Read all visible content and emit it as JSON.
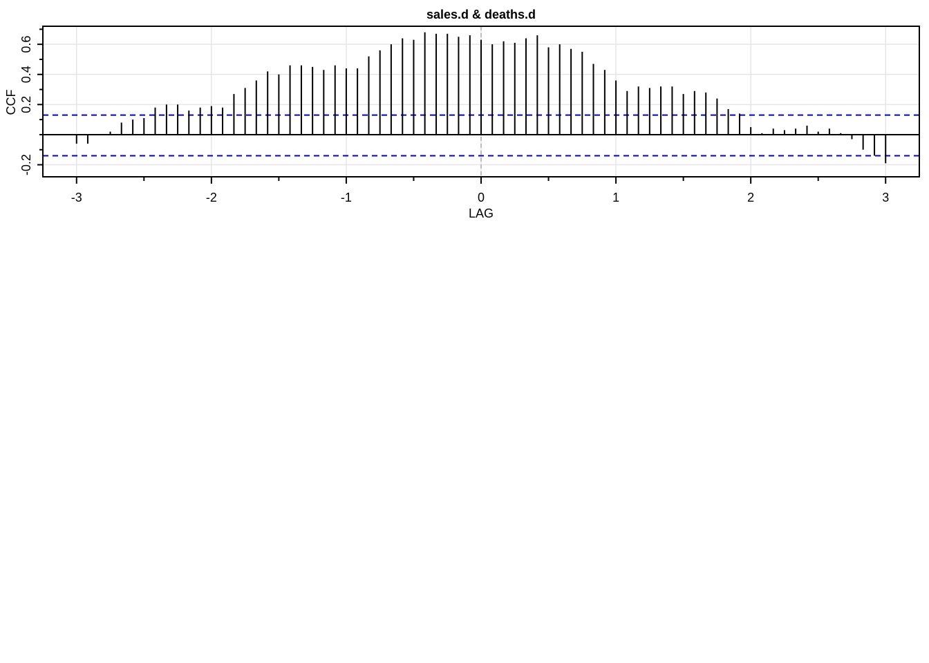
{
  "chart_data": {
    "type": "bar",
    "subtype": "cross-correlation stem plot",
    "title": "sales.d & deaths.d",
    "xlabel": "LAG",
    "ylabel": "CCF",
    "xlim": [
      -3.25,
      3.25
    ],
    "ylim": [
      -0.28,
      0.72
    ],
    "xticks": [
      -3,
      -2,
      -1,
      0,
      1,
      2,
      3
    ],
    "xtick_labels": [
      "-3",
      "-2",
      "-1",
      "0",
      "1",
      "2",
      "3"
    ],
    "yticks": [
      -0.2,
      0.2,
      0.4,
      0.6
    ],
    "ytick_labels": [
      "-0.2",
      "0.2",
      "0.4",
      "0.6"
    ],
    "grid": true,
    "confidence_limits": [
      0.13,
      -0.14
    ],
    "confidence_line_color": "#0000cc",
    "stem_color": "#000000",
    "grid_color": "#e6e6e6",
    "lags": [
      -3.0,
      -2.917,
      -2.833,
      -2.75,
      -2.667,
      -2.583,
      -2.5,
      -2.417,
      -2.333,
      -2.25,
      -2.167,
      -2.083,
      -2.0,
      -1.917,
      -1.833,
      -1.75,
      -1.667,
      -1.583,
      -1.5,
      -1.417,
      -1.333,
      -1.25,
      -1.167,
      -1.083,
      -1.0,
      -0.917,
      -0.833,
      -0.75,
      -0.667,
      -0.583,
      -0.5,
      -0.417,
      -0.333,
      -0.25,
      -0.167,
      -0.083,
      0.0,
      0.083,
      0.167,
      0.25,
      0.333,
      0.417,
      0.5,
      0.583,
      0.667,
      0.75,
      0.833,
      0.917,
      1.0,
      1.083,
      1.167,
      1.25,
      1.333,
      1.417,
      1.5,
      1.583,
      1.667,
      1.75,
      1.833,
      1.917,
      2.0,
      2.083,
      2.167,
      2.25,
      2.333,
      2.417,
      2.5,
      2.583,
      2.667,
      2.75,
      2.833,
      2.917,
      3.0
    ],
    "values": [
      -0.06,
      -0.06,
      0.0,
      0.02,
      0.08,
      0.1,
      0.11,
      0.18,
      0.2,
      0.2,
      0.16,
      0.18,
      0.19,
      0.18,
      0.27,
      0.31,
      0.36,
      0.42,
      0.4,
      0.46,
      0.46,
      0.45,
      0.43,
      0.46,
      0.44,
      0.44,
      0.52,
      0.56,
      0.6,
      0.64,
      0.63,
      0.68,
      0.67,
      0.67,
      0.65,
      0.66,
      0.63,
      0.6,
      0.62,
      0.61,
      0.64,
      0.66,
      0.58,
      0.6,
      0.57,
      0.55,
      0.47,
      0.43,
      0.36,
      0.29,
      0.32,
      0.31,
      0.32,
      0.32,
      0.27,
      0.29,
      0.28,
      0.24,
      0.17,
      0.14,
      0.05,
      0.01,
      0.04,
      0.03,
      0.04,
      0.06,
      0.02,
      0.04,
      0.01,
      -0.03,
      -0.1,
      -0.14,
      -0.19
    ]
  }
}
